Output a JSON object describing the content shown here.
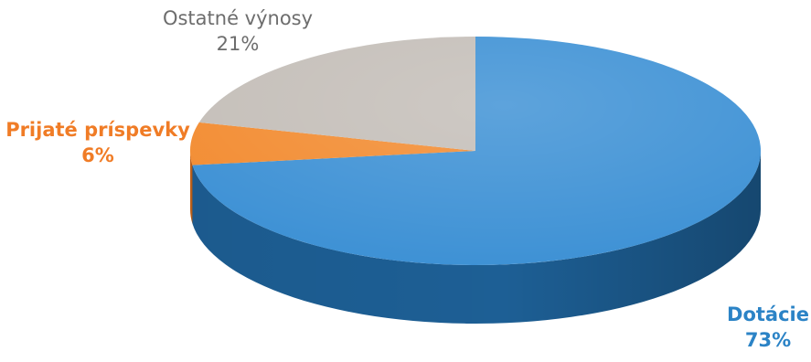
{
  "chart_data": {
    "type": "pie",
    "style": "3d",
    "slices": [
      {
        "name": "Dotácie",
        "value": 73,
        "label": "73%",
        "color": "#3a8fd4",
        "color_side": "#1d5f95",
        "label_color": "#2b83c6"
      },
      {
        "name": "Prijaté príspevky",
        "value": 6,
        "label": "6%",
        "color": "#f28a2e",
        "color_side": "#c2621a",
        "label_color": "#f07c26"
      },
      {
        "name": "Ostatné výnosy",
        "value": 21,
        "label": "21%",
        "color": "#c3bdb7",
        "color_side": "#948d87",
        "label_color": "#6d6d6d"
      }
    ],
    "legend": "none"
  }
}
